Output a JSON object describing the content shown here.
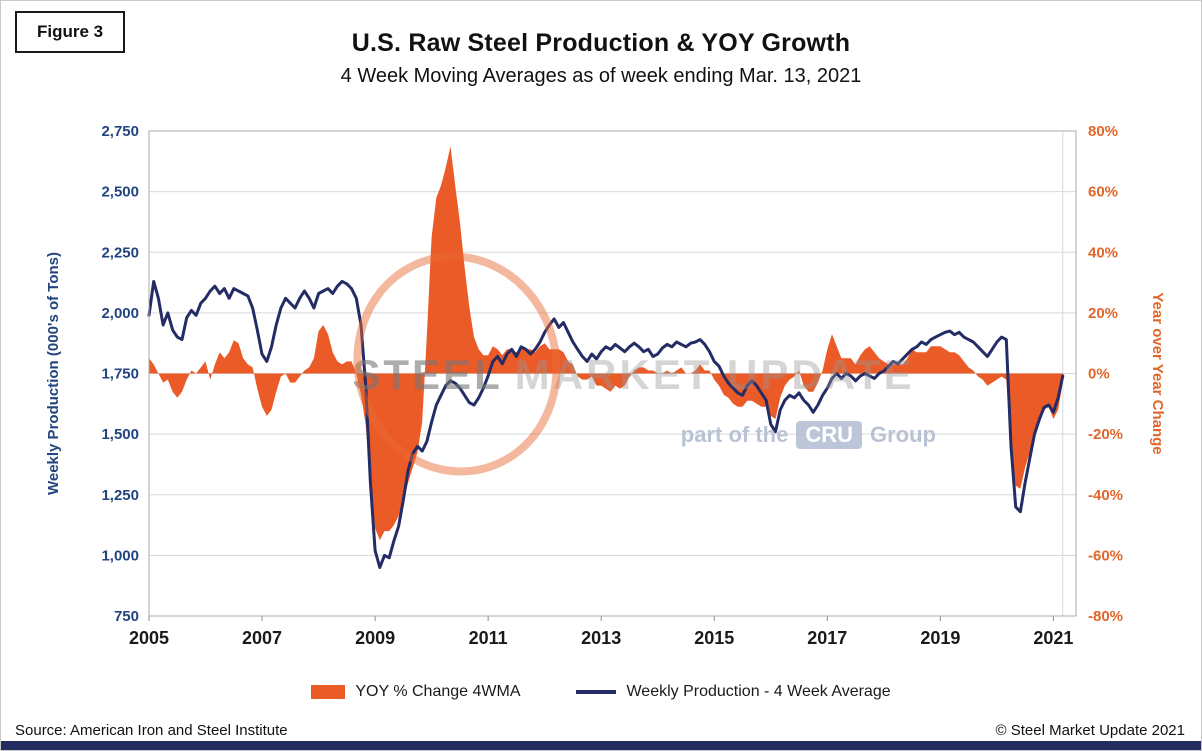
{
  "figure_label": "Figure 3",
  "header": {
    "title": "U.S. Raw Steel Production & YOY Growth",
    "subtitle": "4 Week Moving Averages as of week ending Mar. 13, 2021"
  },
  "watermark": {
    "line1_bold": "STEEL",
    "line1_rest": "MARKET UPDATE",
    "line2_prefix": "part of the",
    "line2_box": "CRU",
    "line2_suffix": "Group"
  },
  "legend": [
    {
      "label": "YOY % Change 4WMA",
      "type": "area",
      "color": "#EB5B28"
    },
    {
      "label": "Weekly Production - 4 Week Average",
      "type": "line",
      "color": "#232C64"
    }
  ],
  "footer": {
    "source": "Source: American Iron and Steel Institute",
    "copyright": "© Steel Market Update 2021"
  },
  "colors": {
    "orange_area": "#EB5B28",
    "orange_text": "#E2662A",
    "navy_line": "#232C64",
    "navy_label": "#23457F",
    "grid": "#D9D9D9",
    "plot_border": "#ABABAB",
    "x_label": "#1A1A1A",
    "tick": "#8A8A8A",
    "bottom_bar": "#232D5F"
  },
  "chart_data": {
    "type": "line+area",
    "title": "U.S. Raw Steel Production & YOY Growth",
    "subtitle": "4 Week Moving Averages as of week ending Mar. 13, 2021",
    "grid": "horizontal only",
    "legend_position": "bottom",
    "axes": {
      "left": {
        "label": "Weekly Production (000's of Tons)",
        "min": 750,
        "max": 2750,
        "tick_step": 250
      },
      "right": {
        "label": "Year over Year Change",
        "min": -80,
        "max": 80,
        "tick_step": 20,
        "unit": "%"
      },
      "x": {
        "min": 2005,
        "max": 2021.4,
        "ticks": [
          2005,
          2007,
          2009,
          2011,
          2013,
          2015,
          2017,
          2019,
          2021
        ]
      }
    },
    "x": {
      "start_year": 2005.0,
      "interval": "monthly estimate of weekly 4WMA",
      "count": 195
    },
    "series": [
      {
        "name": "YOY % Change 4WMA",
        "type": "area",
        "axis": "right",
        "color": "#EB5B28",
        "values": [
          5,
          3,
          0,
          -3,
          -2,
          -6,
          -8,
          -6,
          -2,
          1,
          0,
          2,
          4,
          -2,
          3,
          7,
          5,
          7,
          11,
          10,
          5,
          3,
          2,
          -5,
          -11,
          -14,
          -12,
          -6,
          -1,
          0,
          -3,
          -3,
          -1,
          1,
          2,
          5,
          14,
          16,
          13,
          7,
          4,
          3,
          4,
          4,
          0,
          -7,
          -17,
          -36,
          -51,
          -55,
          -52,
          -52,
          -50,
          -47,
          -42,
          -36,
          -31,
          -26,
          -16,
          13,
          45,
          58,
          62,
          68,
          75,
          62,
          50,
          35,
          22,
          12,
          8,
          6,
          6,
          9,
          8,
          6,
          8,
          8,
          7,
          9,
          8,
          8,
          7,
          9,
          10,
          8,
          8,
          8,
          7,
          4,
          3,
          -1,
          -2,
          -2,
          -1,
          -4,
          -4,
          -5,
          -6,
          -4,
          -5,
          -4,
          -1,
          1,
          2,
          2,
          1,
          1,
          0,
          0,
          1,
          0,
          1,
          2,
          0,
          0,
          1,
          3,
          1,
          1,
          -2,
          -4,
          -7,
          -8,
          -10,
          -11,
          -11,
          -9,
          -9,
          -10,
          -11,
          -11,
          -14,
          -15,
          -8,
          -4,
          -2,
          -1,
          1,
          -4,
          -6,
          -6,
          -3,
          1,
          8,
          13,
          9,
          5,
          5,
          5,
          3,
          6,
          8,
          9,
          7,
          5,
          4,
          3,
          3,
          3,
          3,
          5,
          8,
          7,
          7,
          7,
          9,
          9,
          9,
          8,
          7,
          7,
          6,
          4,
          2,
          1,
          -1,
          -2,
          -4,
          -3,
          -2,
          -1,
          -2,
          -24,
          -37,
          -38,
          -31,
          -26,
          -19,
          -15,
          -12,
          -11,
          -15,
          -12,
          -3
        ]
      },
      {
        "name": "Weekly Production - 4 Week Average",
        "type": "line",
        "axis": "left",
        "color": "#232C64",
        "values": [
          1990,
          2130,
          2060,
          1950,
          2000,
          1930,
          1900,
          1890,
          1980,
          2010,
          1990,
          2040,
          2060,
          2090,
          2110,
          2080,
          2100,
          2060,
          2100,
          2090,
          2080,
          2070,
          2020,
          1930,
          1830,
          1800,
          1860,
          1950,
          2020,
          2060,
          2040,
          2020,
          2060,
          2090,
          2060,
          2020,
          2080,
          2090,
          2100,
          2080,
          2110,
          2130,
          2120,
          2100,
          2060,
          1950,
          1700,
          1300,
          1020,
          950,
          1000,
          990,
          1060,
          1120,
          1230,
          1350,
          1420,
          1450,
          1430,
          1470,
          1550,
          1620,
          1660,
          1700,
          1720,
          1710,
          1690,
          1660,
          1630,
          1620,
          1650,
          1690,
          1740,
          1800,
          1820,
          1790,
          1830,
          1850,
          1820,
          1860,
          1850,
          1830,
          1850,
          1880,
          1920,
          1950,
          1975,
          1940,
          1960,
          1920,
          1880,
          1850,
          1820,
          1800,
          1830,
          1810,
          1840,
          1860,
          1850,
          1870,
          1855,
          1840,
          1860,
          1875,
          1860,
          1840,
          1850,
          1820,
          1830,
          1855,
          1870,
          1860,
          1880,
          1870,
          1860,
          1875,
          1880,
          1890,
          1870,
          1840,
          1800,
          1780,
          1740,
          1710,
          1690,
          1670,
          1660,
          1700,
          1720,
          1700,
          1670,
          1640,
          1540,
          1510,
          1600,
          1640,
          1660,
          1650,
          1670,
          1640,
          1620,
          1590,
          1620,
          1660,
          1690,
          1730,
          1750,
          1730,
          1750,
          1740,
          1720,
          1740,
          1750,
          1740,
          1730,
          1750,
          1760,
          1780,
          1800,
          1790,
          1810,
          1830,
          1850,
          1860,
          1880,
          1870,
          1890,
          1900,
          1910,
          1920,
          1925,
          1910,
          1920,
          1900,
          1890,
          1880,
          1860,
          1840,
          1820,
          1850,
          1880,
          1900,
          1890,
          1450,
          1200,
          1180,
          1300,
          1400,
          1500,
          1560,
          1610,
          1620,
          1590,
          1650,
          1740
        ]
      }
    ]
  }
}
